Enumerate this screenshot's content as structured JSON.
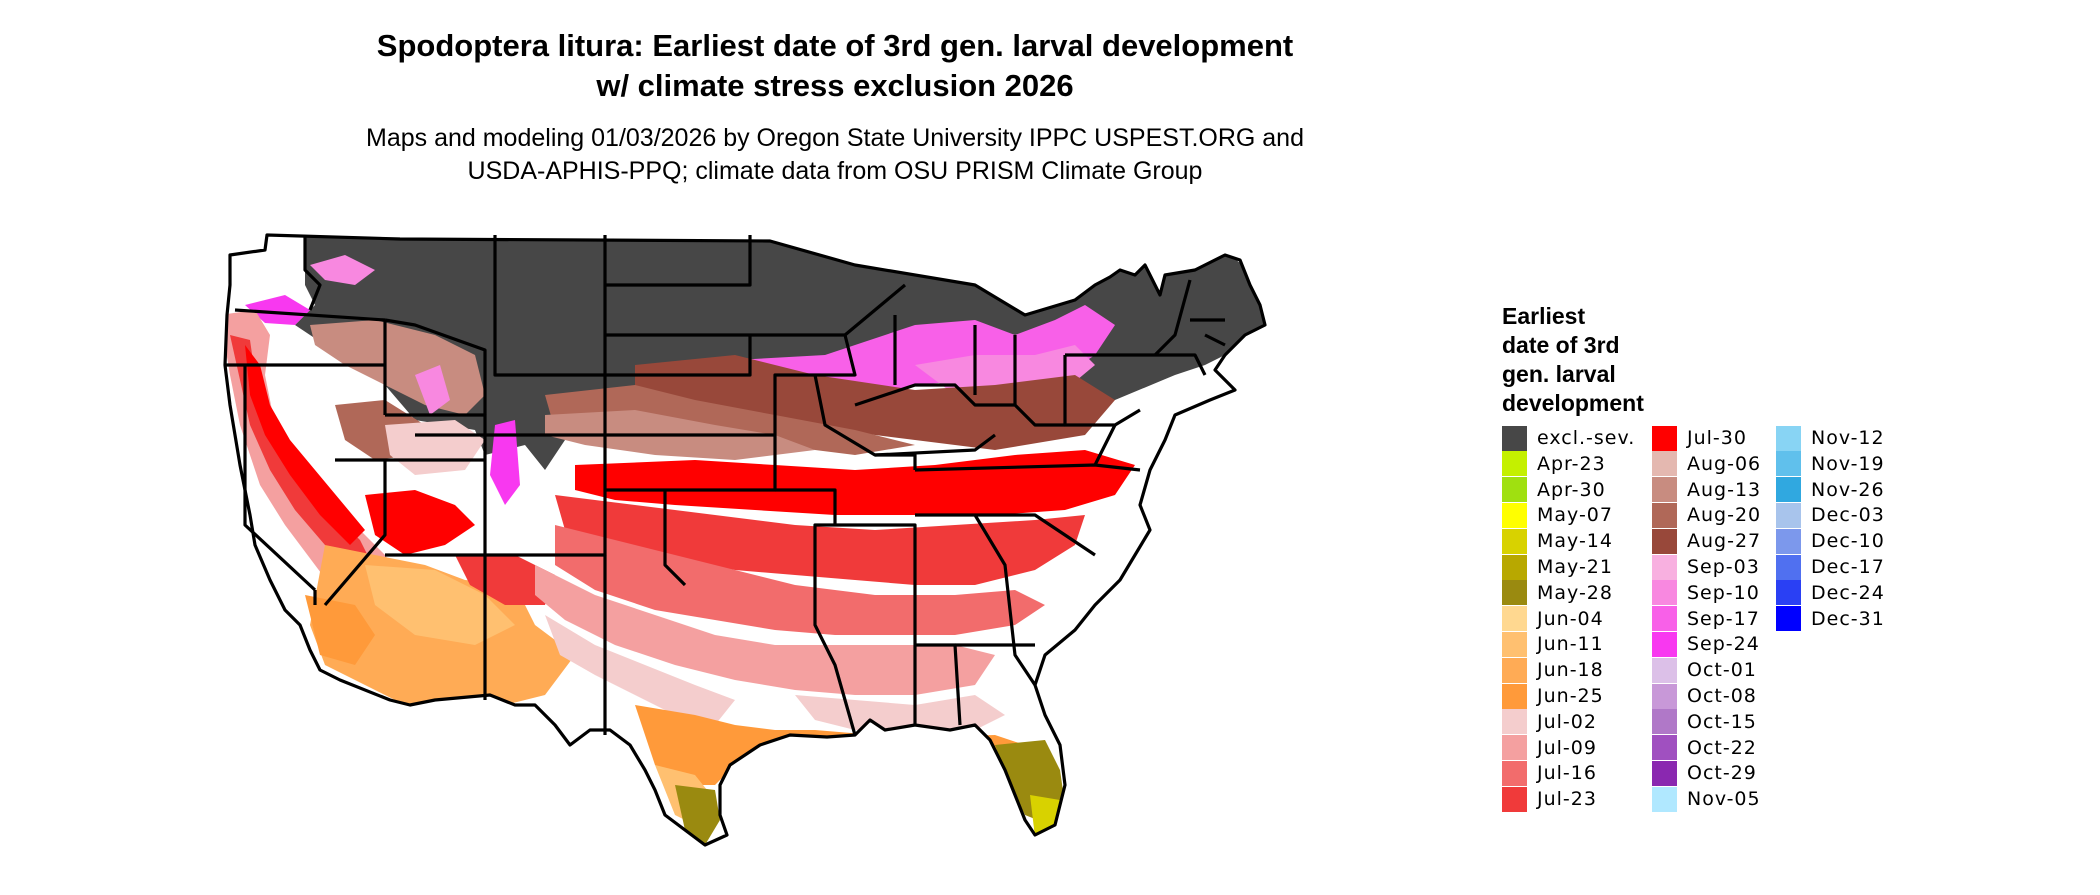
{
  "title_line1": "Spodoptera litura: Earliest date of 3rd gen. larval development",
  "title_line2": "w/ climate stress exclusion 2026",
  "subtitle_line1": "Maps and modeling 01/03/2026 by Oregon State University IPPC USPEST.ORG and",
  "subtitle_line2": "USDA-APHIS-PPQ; climate data from OSU PRISM Climate Group",
  "legend": {
    "title_lines": [
      "Earliest",
      "date of 3rd",
      "gen. larval",
      "development"
    ],
    "items": [
      {
        "label": "excl.-sev.",
        "color": "#474747"
      },
      {
        "label": "Apr-23",
        "color": "#c4f000"
      },
      {
        "label": "Apr-30",
        "color": "#a0e010"
      },
      {
        "label": "May-07",
        "color": "#ffff00"
      },
      {
        "label": "May-14",
        "color": "#d8d200"
      },
      {
        "label": "May-21",
        "color": "#b8a800"
      },
      {
        "label": "May-28",
        "color": "#9a8a10"
      },
      {
        "label": "Jun-04",
        "color": "#ffd890"
      },
      {
        "label": "Jun-11",
        "color": "#ffc070"
      },
      {
        "label": "Jun-18",
        "color": "#ffab55"
      },
      {
        "label": "Jun-25",
        "color": "#ff9a3a"
      },
      {
        "label": "Jul-02",
        "color": "#f4cdcd"
      },
      {
        "label": "Jul-09",
        "color": "#f4a0a0"
      },
      {
        "label": "Jul-16",
        "color": "#f26c6c"
      },
      {
        "label": "Jul-23",
        "color": "#f03a3a"
      },
      {
        "label": "Jul-30",
        "color": "#ff0000"
      },
      {
        "label": "Aug-06",
        "color": "#e4b8b0"
      },
      {
        "label": "Aug-13",
        "color": "#c88c80"
      },
      {
        "label": "Aug-20",
        "color": "#b06858"
      },
      {
        "label": "Aug-27",
        "color": "#98483a"
      },
      {
        "label": "Sep-03",
        "color": "#f8b0e0"
      },
      {
        "label": "Sep-10",
        "color": "#f888e0"
      },
      {
        "label": "Sep-17",
        "color": "#f860e8"
      },
      {
        "label": "Sep-24",
        "color": "#f838f0"
      },
      {
        "label": "Oct-01",
        "color": "#dcc0e8"
      },
      {
        "label": "Oct-08",
        "color": "#c898d8"
      },
      {
        "label": "Oct-15",
        "color": "#b078c8"
      },
      {
        "label": "Oct-22",
        "color": "#a050c0"
      },
      {
        "label": "Oct-29",
        "color": "#8a28b0"
      },
      {
        "label": "Nov-05",
        "color": "#b0e8ff"
      },
      {
        "label": "Nov-12",
        "color": "#88d4f4"
      },
      {
        "label": "Nov-19",
        "color": "#60c0ec"
      },
      {
        "label": "Nov-26",
        "color": "#30a8e0"
      },
      {
        "label": "Dec-03",
        "color": "#a8c4ec"
      },
      {
        "label": "Dec-10",
        "color": "#7c98ec"
      },
      {
        "label": "Dec-17",
        "color": "#5070f0"
      },
      {
        "label": "Dec-24",
        "color": "#2a40f4"
      },
      {
        "label": "Dec-31",
        "color": "#0000ff"
      }
    ]
  }
}
